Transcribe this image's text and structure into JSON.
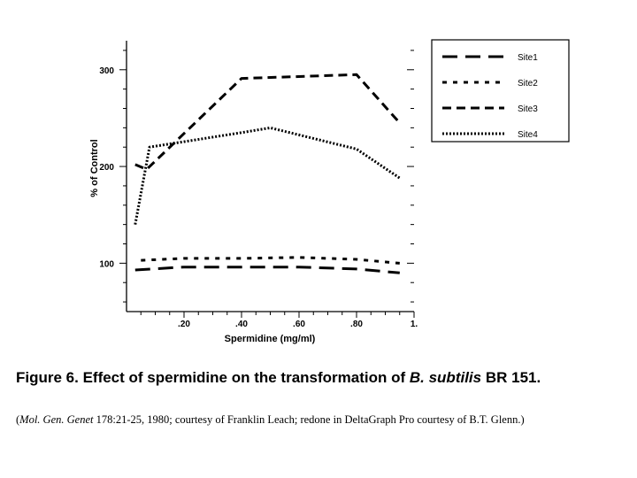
{
  "chart_data": {
    "type": "line",
    "title": "",
    "xlabel": "Spermidine (mg/ml)",
    "ylabel": "% of Control",
    "xlim": [
      0,
      1.0
    ],
    "ylim": [
      50,
      330
    ],
    "x_ticks": [
      {
        "value": 0.2,
        "label": ".20"
      },
      {
        "value": 0.4,
        "label": ".40"
      },
      {
        "value": 0.6,
        "label": ".60"
      },
      {
        "value": 0.8,
        "label": ".80"
      },
      {
        "value": 1.0,
        "label": "1."
      }
    ],
    "y_ticks": [
      {
        "value": 100,
        "label": "100"
      },
      {
        "value": 200,
        "label": "200"
      },
      {
        "value": 300,
        "label": "300"
      }
    ],
    "legend_position": "top-right, outside plot",
    "series": [
      {
        "name": "Site1",
        "style": "long-dash",
        "points": [
          [
            0.03,
            93
          ],
          [
            0.2,
            96
          ],
          [
            0.4,
            96
          ],
          [
            0.6,
            96
          ],
          [
            0.8,
            94
          ],
          [
            0.95,
            90
          ]
        ]
      },
      {
        "name": "Site2",
        "style": "short-dash",
        "points": [
          [
            0.05,
            103
          ],
          [
            0.2,
            105
          ],
          [
            0.4,
            105
          ],
          [
            0.6,
            106
          ],
          [
            0.8,
            104
          ],
          [
            0.95,
            100
          ]
        ]
      },
      {
        "name": "Site3",
        "style": "medium-dash",
        "points": [
          [
            0.03,
            202
          ],
          [
            0.07,
            197
          ],
          [
            0.4,
            291
          ],
          [
            0.8,
            295
          ],
          [
            0.95,
            245
          ]
        ]
      },
      {
        "name": "Site4",
        "style": "dotted",
        "points": [
          [
            0.03,
            140
          ],
          [
            0.08,
            220
          ],
          [
            0.4,
            235
          ],
          [
            0.5,
            240
          ],
          [
            0.8,
            218
          ],
          [
            0.95,
            188
          ]
        ]
      }
    ]
  },
  "caption": {
    "figure_label": "Figure 6. Effect of spermidine on the transformation of ",
    "organism": "B. subtilis",
    "strain": " BR 151.",
    "journal": "Mol. Gen. Genet",
    "source_rest": " 178:21-25, 1980; courtesy of Franklin Leach; redone in DeltaGraph Pro courtesy of B.T. Glenn.)",
    "open_paren": "("
  }
}
